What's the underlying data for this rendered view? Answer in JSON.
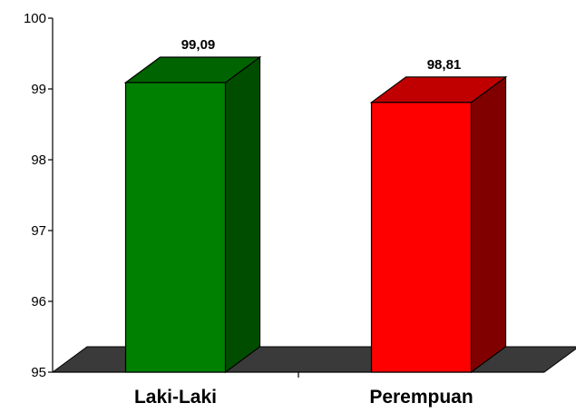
{
  "chart_data": {
    "type": "bar",
    "style": "3d-column",
    "categories": [
      "Laki-Laki",
      "Perempuan"
    ],
    "values": [
      99.09,
      98.81
    ],
    "data_labels": [
      "99,09",
      "98,81"
    ],
    "bar_colors": [
      {
        "front": "#008000",
        "side": "#004D00",
        "top": "#006400"
      },
      {
        "front": "#FF0000",
        "side": "#800000",
        "top": "#C00000"
      }
    ],
    "floor_color": "#3A3A3A",
    "ylim": [
      95,
      100
    ],
    "yticks": [
      95,
      96,
      97,
      98,
      99,
      100
    ],
    "ytick_labels": [
      "95",
      "96",
      "97",
      "98",
      "99",
      "100"
    ],
    "title": "",
    "xlabel": "",
    "ylabel": "",
    "grid": false,
    "legend": "none"
  }
}
